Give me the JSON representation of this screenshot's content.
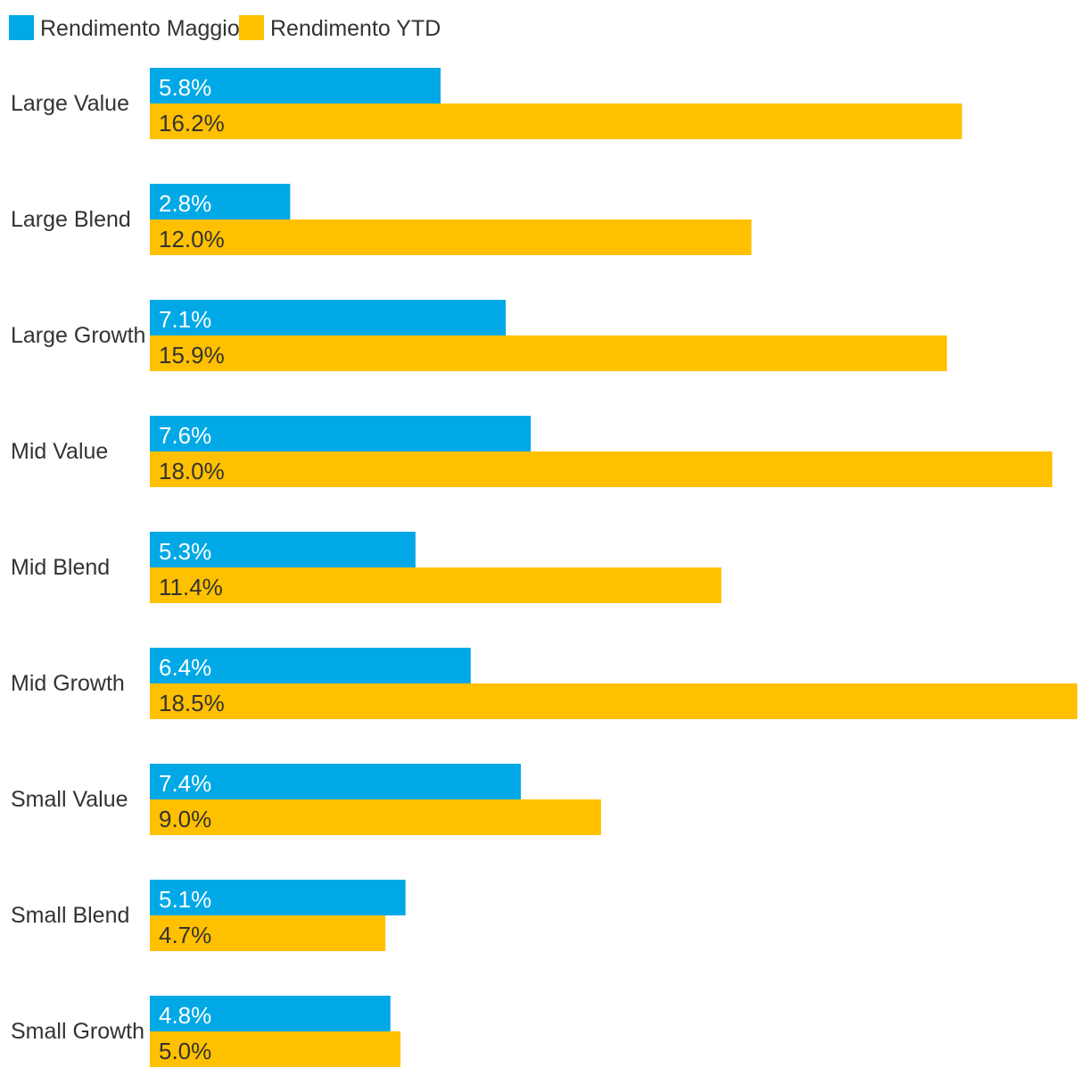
{
  "chart_data": {
    "type": "bar",
    "orientation": "horizontal",
    "title": "",
    "xlabel": "",
    "ylabel": "",
    "xlim": [
      0,
      18.5
    ],
    "grid": false,
    "legend_position": "top-left",
    "categories": [
      "Large Value",
      "Large Blend",
      "Large Growth",
      "Mid Value",
      "Mid Blend",
      "Mid Growth",
      "Small Value",
      "Small Blend",
      "Small Growth"
    ],
    "series": [
      {
        "name": "Rendimento Maggio",
        "color": "#00a8e6",
        "label_color": "#ffffff",
        "values": [
          5.8,
          2.8,
          7.1,
          7.6,
          5.3,
          6.4,
          7.4,
          5.1,
          4.8
        ],
        "labels": [
          "5.8%",
          "2.8%",
          "7.1%",
          "7.6%",
          "5.3%",
          "6.4%",
          "7.4%",
          "5.1%",
          "4.8%"
        ]
      },
      {
        "name": "Rendimento YTD",
        "color": "#ffc000",
        "label_color": "#333333",
        "values": [
          16.2,
          12.0,
          15.9,
          18.0,
          11.4,
          18.5,
          9.0,
          4.7,
          5.0
        ],
        "labels": [
          "16.2%",
          "12.0%",
          "15.9%",
          "18.0%",
          "11.4%",
          "18.5%",
          "9.0%",
          "4.7%",
          "5.0%"
        ]
      }
    ]
  }
}
